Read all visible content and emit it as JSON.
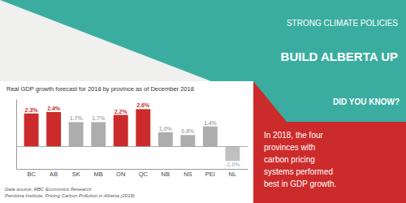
{
  "chart_data": {
    "type": "bar",
    "title": "Real GDP growth forecast for 2018 by province as of December 2018",
    "categories": [
      "BC",
      "AB",
      "SK",
      "MB",
      "ON",
      "QC",
      "NB",
      "NS",
      "PEI",
      "NL"
    ],
    "values": [
      2.3,
      2.4,
      1.7,
      1.7,
      2.2,
      2.6,
      1.0,
      0.8,
      1.4,
      -1.0
    ],
    "value_labels": [
      "2.3%",
      "2.4%",
      "1.7%",
      "1.7%",
      "2.2%",
      "2.6%",
      "1.0%",
      "0.8%",
      "1.4%",
      "-1.0%"
    ],
    "colors": [
      "#cc2b2b",
      "#cc2b2b",
      "#adadad",
      "#adadad",
      "#cc2b2b",
      "#cc2b2b",
      "#adadad",
      "#adadad",
      "#adadad",
      "#c0c0c0"
    ],
    "data_labels": true,
    "tick_labels": "x",
    "ylim": [
      -1.55,
      3.3
    ],
    "annotations": [
      "STRONG CLIMATE POLICIES",
      "BUILD ALBERTA UP",
      "DID YOU KNOW?",
      "In 2018, the four\nprovinces with\ncarbon pricing\nsystems performed\nbest in GDP growth.",
      "Data source: RBC Economics Research\nPembina Institute, Pricing Carbon Pollution in Alberta (2019)"
    ]
  }
}
